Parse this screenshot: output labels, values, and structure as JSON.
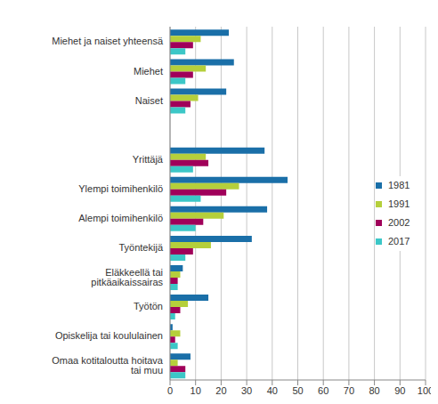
{
  "chart_data": {
    "type": "bar",
    "orientation": "horizontal",
    "categories": [
      "Miehet ja naiset yhteensä",
      "Miehet",
      "Naiset",
      null,
      "Yrittäjä",
      "Ylempi toimihenkilö",
      "Alempi toimihenkilö",
      "Työntekijä",
      "Eläkkeellä tai pitkäaikaissairas",
      "Työtön",
      "Opiskelija tai koululainen",
      "Omaa kotitaloutta hoitava tai muu"
    ],
    "series": [
      {
        "name": "1981",
        "color": "#1a6fa8",
        "values": [
          23,
          25,
          22,
          null,
          37,
          46,
          38,
          32,
          5,
          15,
          1,
          8
        ]
      },
      {
        "name": "1991",
        "color": "#b5cf3b",
        "values": [
          12,
          14,
          11,
          null,
          14,
          27,
          21,
          16,
          4,
          7,
          4,
          3
        ]
      },
      {
        "name": "2002",
        "color": "#a0005a",
        "values": [
          9,
          9,
          8,
          null,
          15,
          22,
          13,
          9,
          3,
          4,
          2,
          6
        ]
      },
      {
        "name": "2017",
        "color": "#3cc7c7",
        "values": [
          6,
          6,
          6,
          null,
          9,
          12,
          10,
          6,
          3,
          2,
          3,
          6
        ]
      }
    ],
    "xlim": [
      0,
      100
    ],
    "xticks": [
      0,
      10,
      20,
      30,
      40,
      50,
      60,
      70,
      80,
      90,
      100
    ],
    "grid": true,
    "legend": "right"
  }
}
